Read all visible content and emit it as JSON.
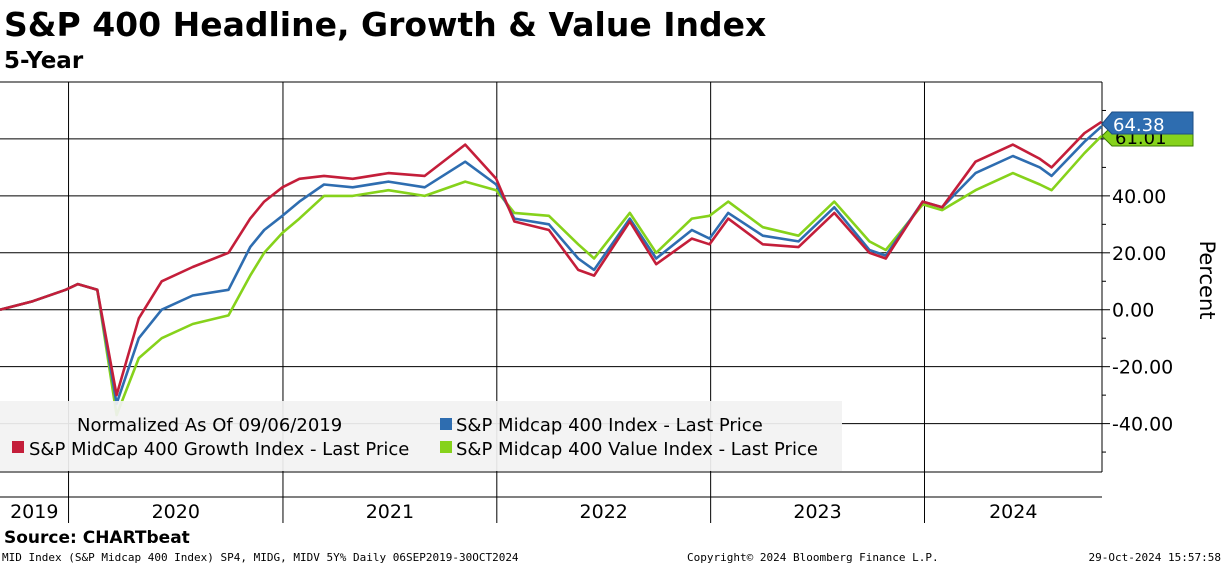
{
  "header": {
    "title": "S&P 400 Headline, Growth & Value Index",
    "subtitle": "5-Year"
  },
  "legend": {
    "note": "Normalized As Of 09/06/2019"
  },
  "last_value_tags": {
    "headline": "64.38",
    "value_partial": "61.01"
  },
  "footer": {
    "source": "Source: CHARTbeat",
    "left": "MID Index (S&P Midcap 400 Index) SP4, MIDG, MIDV 5Y%  Daily 06SEP2019-30OCT2024",
    "center": "Copyright© 2024 Bloomberg Finance L.P.",
    "right": "29-Oct-2024 15:57:58"
  },
  "chart_data": {
    "type": "line",
    "title": "S&P 400 Headline, Growth & Value Index",
    "subtitle": "5-Year",
    "ylabel": "Percent",
    "xlabel": "",
    "x_tick_labels": [
      "2019",
      "2020",
      "2021",
      "2022",
      "2023",
      "2024"
    ],
    "xlim": [
      "2019-09-06",
      "2024-10-30"
    ],
    "ylim": [
      -57,
      80
    ],
    "y_ticks": [
      -40,
      -20,
      0,
      20,
      40
    ],
    "y_tick_labels": [
      "-40.00",
      "-20.00",
      "0.00",
      "20.00",
      "40.00"
    ],
    "grid": true,
    "legend_position": "bottom-left",
    "x": [
      "2019-09-06",
      "2019-11-01",
      "2019-12-27",
      "2020-01-17",
      "2020-02-19",
      "2020-03-23",
      "2020-04-30",
      "2020-06-08",
      "2020-07-31",
      "2020-09-30",
      "2020-11-06",
      "2020-11-30",
      "2020-12-31",
      "2021-01-29",
      "2021-03-12",
      "2021-04-30",
      "2021-06-30",
      "2021-08-31",
      "2021-11-08",
      "2021-12-31",
      "2022-01-31",
      "2022-03-31",
      "2022-05-20",
      "2022-06-16",
      "2022-08-16",
      "2022-09-30",
      "2022-11-30",
      "2022-12-30",
      "2023-01-31",
      "2023-03-31",
      "2023-05-31",
      "2023-07-31",
      "2023-09-29",
      "2023-10-27",
      "2023-12-29",
      "2024-01-31",
      "2024-03-28",
      "2024-05-31",
      "2024-07-16",
      "2024-08-05",
      "2024-09-30",
      "2024-10-29"
    ],
    "series": [
      {
        "name": "S&P Midcap 400 Index - Last Price",
        "color": "#2e6db0",
        "values": [
          0,
          3,
          7,
          9,
          7,
          -33,
          -10,
          0,
          5,
          7,
          22,
          28,
          33,
          38,
          44,
          43,
          45,
          43,
          52,
          44,
          32,
          30,
          18,
          14,
          32,
          18,
          28,
          25,
          34,
          26,
          24,
          36,
          21,
          19,
          38,
          36,
          48,
          54,
          50,
          47,
          59,
          64.38
        ]
      },
      {
        "name": "S&P MidCap 400 Growth Index - Last Price",
        "color": "#c41e3a",
        "values": [
          0,
          3,
          7,
          9,
          7,
          -30,
          -3,
          10,
          15,
          20,
          32,
          38,
          43,
          46,
          47,
          46,
          48,
          47,
          58,
          46,
          31,
          28,
          14,
          12,
          31,
          16,
          25,
          23,
          32,
          23,
          22,
          34,
          20,
          18,
          38,
          36,
          52,
          58,
          53,
          50,
          62,
          66
        ]
      },
      {
        "name": "S&P Midcap 400 Value Index - Last Price",
        "color": "#86d21b",
        "values": [
          0,
          3,
          7,
          9,
          7,
          -37,
          -17,
          -10,
          -5,
          -2,
          12,
          20,
          27,
          32,
          40,
          40,
          42,
          40,
          45,
          42,
          34,
          33,
          23,
          18,
          34,
          20,
          32,
          33,
          38,
          29,
          26,
          38,
          24,
          21,
          37,
          35,
          42,
          48,
          44,
          42,
          55,
          61.01
        ]
      }
    ]
  }
}
